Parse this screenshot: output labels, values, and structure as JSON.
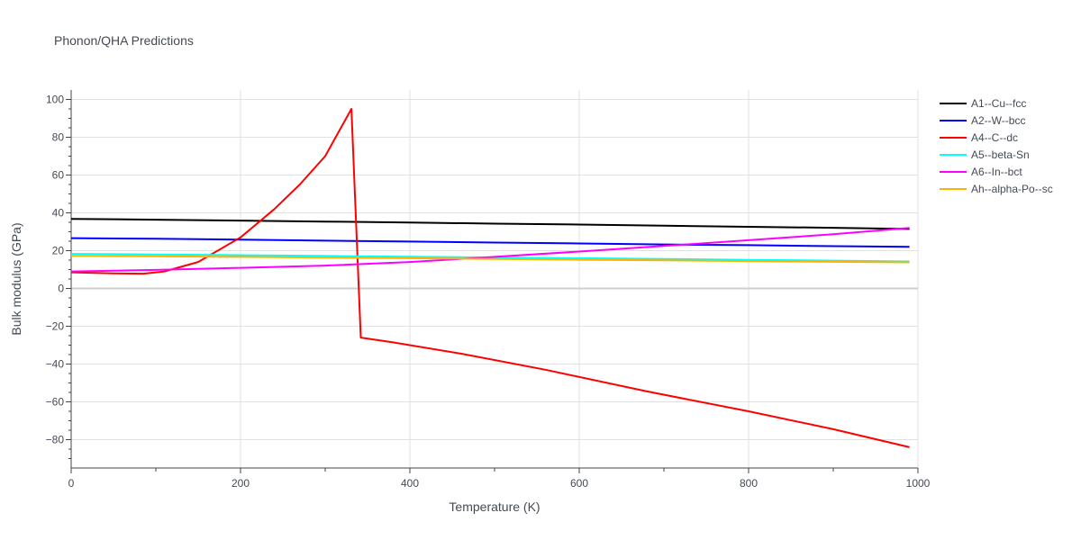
{
  "chart_data": {
    "type": "line",
    "title": "Phonon/QHA Predictions",
    "xlabel": "Temperature (K)",
    "ylabel": "Bulk modulus (GPa)",
    "xlim": [
      0,
      1000
    ],
    "ylim": [
      -95,
      105
    ],
    "x_ticks": [
      0,
      200,
      400,
      600,
      800,
      1000
    ],
    "y_ticks": [
      100,
      80,
      60,
      40,
      20,
      0,
      -20,
      -40,
      -60,
      -80
    ],
    "grid": true,
    "legend_position": "top-right",
    "series": [
      {
        "name": "A1--Cu--fcc",
        "color": "#000000",
        "x": [
          0,
          100,
          200,
          300,
          400,
          500,
          600,
          700,
          800,
          900,
          990
        ],
        "y": [
          36.8,
          36.4,
          35.9,
          35.4,
          34.9,
          34.3,
          33.8,
          33.2,
          32.6,
          32.1,
          31.5
        ]
      },
      {
        "name": "A2--W--bcc",
        "color": "#0000ff",
        "x": [
          0,
          100,
          200,
          300,
          400,
          500,
          600,
          700,
          800,
          900,
          990
        ],
        "y": [
          26.6,
          26.3,
          25.8,
          25.3,
          24.8,
          24.3,
          23.8,
          23.3,
          22.9,
          22.4,
          22.0
        ]
      },
      {
        "name": "A4--C--dc",
        "color": "#ff0000",
        "x": [
          0,
          50,
          85,
          110,
          150,
          200,
          240,
          270,
          300,
          331,
          342,
          380,
          460,
          560,
          680,
          800,
          900,
          990
        ],
        "y": [
          8.5,
          8.0,
          7.8,
          9.0,
          14.0,
          27.0,
          42.0,
          55.0,
          70.0,
          95.0,
          -26.0,
          -28.5,
          -34.5,
          -43.0,
          -54.5,
          -65.0,
          -74.5,
          -84.0
        ]
      },
      {
        "name": "A5--beta-Sn",
        "color": "#00ffff",
        "x": [
          0,
          100,
          200,
          300,
          400,
          500,
          600,
          700,
          800,
          900,
          990
        ],
        "y": [
          18.3,
          18.0,
          17.6,
          17.2,
          16.8,
          16.4,
          16.0,
          15.6,
          15.1,
          14.7,
          14.3
        ]
      },
      {
        "name": "A6--In--bct",
        "color": "#ff00ff",
        "x": [
          0,
          100,
          200,
          300,
          400,
          500,
          600,
          700,
          800,
          900,
          990
        ],
        "y": [
          9.0,
          9.8,
          10.9,
          12.1,
          14.0,
          16.7,
          19.5,
          22.5,
          25.5,
          28.7,
          32.0
        ]
      },
      {
        "name": "Ah--alpha-Po--sc",
        "color": "#ffb300",
        "x": [
          0,
          100,
          200,
          300,
          400,
          500,
          600,
          700,
          800,
          900,
          990
        ],
        "y": [
          17.3,
          17.0,
          16.7,
          16.3,
          16.0,
          15.6,
          15.2,
          14.9,
          14.5,
          14.1,
          13.8
        ]
      }
    ]
  }
}
